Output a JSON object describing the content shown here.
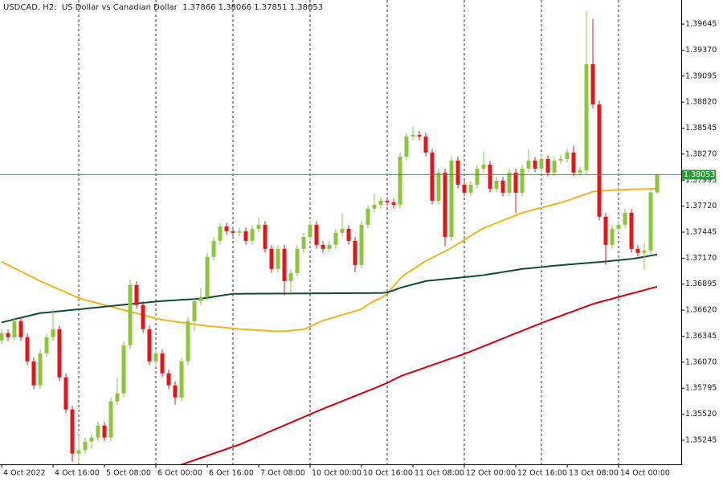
{
  "chart_data": {
    "type": "candlestick",
    "title": "USDCAD, H2:  US Dollar vs Canadian Dollar  1.37866 1.38066 1.37851 1.38053",
    "categories": [
      "4 Oct 2022",
      null,
      null,
      null,
      null,
      null,
      null,
      null,
      "4 Oct 16:00",
      null,
      null,
      null,
      null,
      null,
      null,
      null,
      "5 Oct 08:00",
      null,
      null,
      null,
      null,
      null,
      null,
      null,
      "6 Oct 00:00",
      null,
      null,
      null,
      null,
      null,
      null,
      null,
      "6 Oct 16:00",
      null,
      null,
      null,
      null,
      null,
      null,
      null,
      "7 Oct 08:00",
      null,
      null,
      null,
      null,
      null,
      null,
      null,
      "10 Oct 00:00",
      null,
      null,
      null,
      null,
      null,
      null,
      null,
      "10 Oct 16:00",
      null,
      null,
      null,
      null,
      null,
      null,
      null,
      "11 Oct 08:00",
      null,
      null,
      null,
      null,
      null,
      null,
      null,
      "12 Oct 00:00",
      null,
      null,
      null,
      null,
      null,
      null,
      null,
      "12 Oct 16:00",
      null,
      null,
      null,
      null,
      null,
      null,
      null,
      "13 Oct 08:00",
      null,
      null,
      null,
      null,
      null,
      null,
      null,
      "14 Oct 00:00",
      null,
      null,
      null,
      null,
      null,
      null
    ],
    "open": [
      1.363,
      1.36377,
      1.36334,
      1.36504,
      1.36334,
      1.36079,
      1.35825,
      1.36164,
      1.36334,
      1.36419,
      1.3591,
      1.3557,
      1.35103,
      1.3514,
      1.3523,
      1.35273,
      1.354,
      1.35273,
      1.35655,
      1.3574,
      1.36249,
      1.36886,
      1.36674,
      1.36419,
      1.36079,
      1.36164,
      1.35952,
      1.35825,
      1.35697,
      1.36079,
      1.36504,
      1.36716,
      1.36759,
      1.37183,
      1.37353,
      1.37506,
      1.37455,
      1.37438,
      1.37455,
      1.37353,
      1.3748,
      1.37523,
      1.37268,
      1.37056,
      1.37268,
      1.36928,
      1.37013,
      1.37268,
      1.37395,
      1.37523,
      1.37311,
      1.37268,
      1.37311,
      1.37438,
      1.3748,
      1.37353,
      1.37098,
      1.37523,
      1.37693,
      1.37735,
      1.37777,
      1.37761,
      1.37735,
      1.38244,
      1.38457,
      1.38474,
      1.38457,
      1.38287,
      1.37777,
      1.38075,
      1.37395,
      1.38202,
      1.37947,
      1.37862,
      1.37947,
      1.38117,
      1.3816,
      1.37905,
      1.3799,
      1.37862,
      1.38075,
      1.37862,
      1.38117,
      1.38202,
      1.38117,
      1.38219,
      1.38075,
      1.38202,
      1.38219,
      1.38287,
      1.38075,
      1.381,
      1.39221,
      1.38796,
      1.37608,
      1.37311,
      1.3748,
      1.37523,
      1.3765,
      1.37268,
      1.37226,
      1.37251,
      1.37866
    ],
    "high": [
      1.36417,
      1.36417,
      1.36544,
      1.36544,
      1.36374,
      1.36119,
      1.36204,
      1.36374,
      1.3663,
      1.36459,
      1.3595,
      1.3561,
      1.353,
      1.3527,
      1.35313,
      1.3544,
      1.3544,
      1.35695,
      1.359,
      1.36289,
      1.36945,
      1.36926,
      1.36714,
      1.36459,
      1.36204,
      1.36204,
      1.35992,
      1.35865,
      1.36119,
      1.36544,
      1.36756,
      1.3686,
      1.37223,
      1.37393,
      1.37546,
      1.37546,
      1.37495,
      1.37495,
      1.37495,
      1.3752,
      1.376,
      1.37563,
      1.37308,
      1.37308,
      1.37308,
      1.37053,
      1.37308,
      1.37435,
      1.37563,
      1.37563,
      1.37351,
      1.37351,
      1.37478,
      1.3765,
      1.3752,
      1.37393,
      1.37563,
      1.37733,
      1.3785,
      1.37817,
      1.37817,
      1.37801,
      1.38284,
      1.38497,
      1.3856,
      1.38514,
      1.38497,
      1.38327,
      1.38115,
      1.38115,
      1.38242,
      1.38242,
      1.37987,
      1.37987,
      1.38157,
      1.383,
      1.382,
      1.3803,
      1.3803,
      1.38115,
      1.38115,
      1.38157,
      1.3832,
      1.38242,
      1.38259,
      1.38259,
      1.38242,
      1.38259,
      1.38327,
      1.3836,
      1.3814,
      1.39781,
      1.397,
      1.38836,
      1.37648,
      1.3752,
      1.37563,
      1.3769,
      1.3769,
      1.37308,
      1.3733,
      1.37906,
      1.38066
    ],
    "low": [
      1.3626,
      1.36294,
      1.36294,
      1.36294,
      1.36039,
      1.35785,
      1.35785,
      1.36124,
      1.36294,
      1.3587,
      1.3553,
      1.3502,
      1.3502,
      1.351,
      1.3515,
      1.35233,
      1.35233,
      1.35233,
      1.35615,
      1.357,
      1.36209,
      1.36634,
      1.36379,
      1.36039,
      1.36039,
      1.35912,
      1.35785,
      1.3562,
      1.35657,
      1.36039,
      1.364,
      1.36676,
      1.36719,
      1.37143,
      1.37313,
      1.37415,
      1.37398,
      1.37398,
      1.37313,
      1.37313,
      1.3744,
      1.37228,
      1.37016,
      1.37016,
      1.36776,
      1.368,
      1.36973,
      1.37228,
      1.37355,
      1.37271,
      1.37228,
      1.37228,
      1.37271,
      1.37398,
      1.37313,
      1.3702,
      1.37058,
      1.37483,
      1.37653,
      1.37695,
      1.37721,
      1.37695,
      1.37695,
      1.38204,
      1.38417,
      1.38417,
      1.38247,
      1.37737,
      1.37737,
      1.373,
      1.37355,
      1.37907,
      1.37822,
      1.37822,
      1.37907,
      1.38077,
      1.37865,
      1.37865,
      1.37822,
      1.37822,
      1.3765,
      1.37822,
      1.38077,
      1.38077,
      1.38077,
      1.38035,
      1.38035,
      1.38162,
      1.38179,
      1.38035,
      1.38035,
      1.3806,
      1.38756,
      1.37568,
      1.371,
      1.37271,
      1.3744,
      1.37483,
      1.37228,
      1.37186,
      1.37047,
      1.37211,
      1.37851
    ],
    "close": [
      1.36377,
      1.36334,
      1.36504,
      1.36334,
      1.36079,
      1.35825,
      1.36164,
      1.36334,
      1.36419,
      1.3591,
      1.3557,
      1.35103,
      1.3514,
      1.3523,
      1.35273,
      1.354,
      1.35273,
      1.35655,
      1.3574,
      1.36249,
      1.36886,
      1.36674,
      1.36419,
      1.36079,
      1.36164,
      1.35952,
      1.35825,
      1.35697,
      1.36079,
      1.36504,
      1.36716,
      1.36759,
      1.37183,
      1.37353,
      1.37506,
      1.37455,
      1.37438,
      1.37455,
      1.37353,
      1.3748,
      1.37523,
      1.37268,
      1.37056,
      1.37268,
      1.36928,
      1.37013,
      1.37268,
      1.37395,
      1.37523,
      1.37311,
      1.37268,
      1.37311,
      1.37438,
      1.3748,
      1.37353,
      1.37098,
      1.37523,
      1.37693,
      1.37735,
      1.37777,
      1.37761,
      1.37735,
      1.38244,
      1.38457,
      1.38474,
      1.38457,
      1.38287,
      1.37777,
      1.38075,
      1.37395,
      1.38202,
      1.37947,
      1.37862,
      1.37947,
      1.38117,
      1.3816,
      1.37905,
      1.3799,
      1.37862,
      1.38075,
      1.37862,
      1.38117,
      1.38202,
      1.38117,
      1.38219,
      1.38075,
      1.38202,
      1.38219,
      1.38287,
      1.38075,
      1.381,
      1.39221,
      1.38796,
      1.37608,
      1.37311,
      1.3748,
      1.37523,
      1.3765,
      1.37268,
      1.37226,
      1.37251,
      1.37866,
      1.38053
    ],
    "up_color": "#8cc63f",
    "down_color": "#e0161b",
    "series": [
      {
        "color": "#f0b41e",
        "values": [
          1.37132,
          1.37098,
          1.37064,
          1.3703,
          1.36996,
          1.36962,
          1.36928,
          1.36898,
          1.36868,
          1.36839,
          1.36809,
          1.36779,
          1.3675,
          1.36729,
          1.36711,
          1.36693,
          1.36675,
          1.36658,
          1.3664,
          1.36622,
          1.36605,
          1.36587,
          1.36569,
          1.36552,
          1.36534,
          1.36519,
          1.36509,
          1.36499,
          1.3649,
          1.3648,
          1.36471,
          1.36461,
          1.36454,
          1.36448,
          1.36441,
          1.36434,
          1.36427,
          1.3642,
          1.36416,
          1.36412,
          1.36408,
          1.36404,
          1.364,
          1.36397,
          1.36397,
          1.36404,
          1.36411,
          1.36417,
          1.36445,
          1.36479,
          1.36509,
          1.36529,
          1.3655,
          1.3657,
          1.3659,
          1.36611,
          1.36631,
          1.36679,
          1.36718,
          1.36747,
          1.36793,
          1.36874,
          1.36952,
          1.37011,
          1.3705,
          1.37096,
          1.37141,
          1.37174,
          1.37209,
          1.37243,
          1.37279,
          1.37321,
          1.37363,
          1.37406,
          1.37448,
          1.37487,
          1.37514,
          1.37541,
          1.37568,
          1.37596,
          1.37623,
          1.3765,
          1.37668,
          1.37686,
          1.37703,
          1.37721,
          1.37739,
          1.37757,
          1.37779,
          1.37802,
          1.37826,
          1.3785,
          1.37873,
          1.37882,
          1.37885,
          1.37889,
          1.37892,
          1.37895,
          1.37897,
          1.37899,
          1.37901,
          1.37903,
          1.37905
        ]
      },
      {
        "color": "#0f4b3a",
        "values": [
          1.36491,
          1.36507,
          1.36524,
          1.3654,
          1.36556,
          1.36573,
          1.36589,
          1.36596,
          1.36602,
          1.36609,
          1.36616,
          1.36623,
          1.36629,
          1.36636,
          1.36643,
          1.3665,
          1.36657,
          1.36664,
          1.36671,
          1.36677,
          1.36684,
          1.36691,
          1.36698,
          1.36704,
          1.36711,
          1.36717,
          1.36721,
          1.36725,
          1.3673,
          1.36734,
          1.36738,
          1.36742,
          1.36752,
          1.36762,
          1.36773,
          1.36783,
          1.36793,
          1.36793,
          1.36794,
          1.36794,
          1.36795,
          1.36795,
          1.36795,
          1.36796,
          1.36796,
          1.36796,
          1.36797,
          1.36797,
          1.36797,
          1.36798,
          1.36798,
          1.36798,
          1.36799,
          1.36799,
          1.36799,
          1.368,
          1.368,
          1.368,
          1.36801,
          1.36801,
          1.36807,
          1.36831,
          1.36855,
          1.36874,
          1.36892,
          1.3691,
          1.36928,
          1.36935,
          1.36942,
          1.36949,
          1.36955,
          1.36962,
          1.36969,
          1.36976,
          1.36983,
          1.36991,
          1.37002,
          1.37012,
          1.37023,
          1.37034,
          1.37045,
          1.37056,
          1.37063,
          1.37069,
          1.37076,
          1.37083,
          1.3709,
          1.37096,
          1.37102,
          1.37107,
          1.37113,
          1.37118,
          1.37124,
          1.37129,
          1.37135,
          1.37142,
          1.37149,
          1.37156,
          1.37162,
          1.37172,
          1.37184,
          1.37197,
          1.37209
        ]
      },
      {
        "color": "#d4000f",
        "values": [
          null,
          null,
          null,
          null,
          null,
          null,
          null,
          null,
          null,
          null,
          null,
          null,
          null,
          null,
          null,
          null,
          null,
          null,
          null,
          null,
          null,
          null,
          null,
          null,
          null,
          null,
          null,
          1.34964,
          1.34987,
          1.35011,
          1.35034,
          1.35058,
          1.35081,
          1.35105,
          1.35128,
          1.35152,
          1.35176,
          1.35199,
          1.35227,
          1.35256,
          1.35285,
          1.35315,
          1.35344,
          1.35373,
          1.35402,
          1.35431,
          1.35461,
          1.3549,
          1.35519,
          1.35548,
          1.35577,
          1.35604,
          1.35631,
          1.35658,
          1.35686,
          1.35713,
          1.3574,
          1.35767,
          1.35794,
          1.35822,
          1.35851,
          1.35885,
          1.35919,
          1.35945,
          1.35968,
          1.35992,
          1.36016,
          1.3604,
          1.36063,
          1.36087,
          1.36111,
          1.36134,
          1.36158,
          1.36184,
          1.36212,
          1.36239,
          1.36266,
          1.36293,
          1.3632,
          1.36348,
          1.36375,
          1.36402,
          1.36429,
          1.36456,
          1.36484,
          1.3651,
          1.36535,
          1.3656,
          1.36585,
          1.3661,
          1.36635,
          1.3666,
          1.36685,
          1.36705,
          1.36723,
          1.36741,
          1.36759,
          1.36778,
          1.36796,
          1.36814,
          1.36832,
          1.36851,
          1.36869
        ]
      }
    ],
    "last_price": 1.38053,
    "last_price_color": "#2e9a3a",
    "ylim": [
      1.3499,
      1.399
    ],
    "yticks": [
      1.39645,
      {
        "value": 1.3937,
        "label": "1.39370"
      },
      1.39095,
      {
        "value": 1.3882,
        "label": "1.38820"
      },
      1.38545,
      {
        "value": 1.3827,
        "label": "1.38270"
      },
      1.37995,
      {
        "value": 1.3772,
        "label": "1.37720"
      },
      1.37445,
      {
        "value": 1.3717,
        "label": "1.37170"
      },
      1.36895,
      {
        "value": 1.3662,
        "label": "1.36620"
      },
      1.36345,
      {
        "value": 1.3607,
        "label": "1.36070"
      },
      1.35795,
      {
        "value": 1.3552,
        "label": "1.35520"
      },
      1.35245
    ]
  }
}
